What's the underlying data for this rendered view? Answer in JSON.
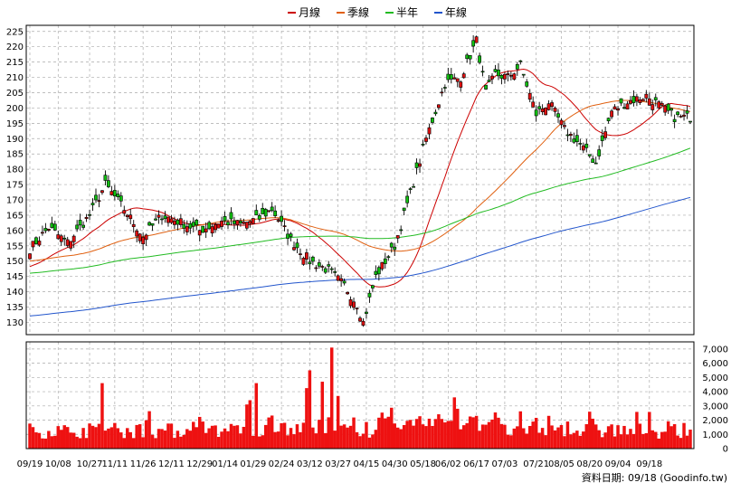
{
  "chart_data": {
    "type": "candlestick",
    "legend": [
      {
        "name": "月線",
        "color": "#cc0000"
      },
      {
        "name": "季線",
        "color": "#e06010"
      },
      {
        "name": "半年",
        "color": "#22bb22"
      },
      {
        "name": "年線",
        "color": "#2255cc"
      }
    ],
    "price_axis": {
      "min": 126,
      "max": 227,
      "ticks": [
        130,
        135,
        140,
        145,
        150,
        155,
        160,
        165,
        170,
        175,
        180,
        185,
        190,
        195,
        200,
        205,
        210,
        215,
        220,
        225
      ]
    },
    "volume_axis": {
      "min": 0,
      "max": 7500,
      "ticks": [
        0,
        1000,
        2000,
        3000,
        4000,
        5000,
        6000,
        7000
      ],
      "tick_labels": [
        "0",
        "1,000",
        "2,000",
        "3,000",
        "4,000",
        "5,000",
        "6,000",
        "7,000"
      ]
    },
    "x_tick_labels": [
      "09/19",
      "10/08",
      "10/27",
      "11/11",
      "11/26",
      "12/11",
      "12/29",
      "01/14",
      "01/29",
      "02/24",
      "03/12",
      "03/27",
      "04/15",
      "04/30",
      "05/18",
      "06/02",
      "06/17",
      "07/03",
      "07/21",
      "08/05",
      "08/20",
      "09/04",
      "09/18"
    ],
    "anchors": [
      {
        "d": 0,
        "c": 154
      },
      {
        "d": 6,
        "c": 161
      },
      {
        "d": 12,
        "c": 156
      },
      {
        "d": 19,
        "c": 165
      },
      {
        "d": 24,
        "c": 175
      },
      {
        "d": 30,
        "c": 167
      },
      {
        "d": 36,
        "c": 158
      },
      {
        "d": 42,
        "c": 165
      },
      {
        "d": 47,
        "c": 163
      },
      {
        "d": 54,
        "c": 160
      },
      {
        "d": 61,
        "c": 163
      },
      {
        "d": 67,
        "c": 162
      },
      {
        "d": 73,
        "c": 164
      },
      {
        "d": 77,
        "c": 167
      },
      {
        "d": 83,
        "c": 157
      },
      {
        "d": 89,
        "c": 150
      },
      {
        "d": 95,
        "c": 147
      },
      {
        "d": 100,
        "c": 142
      },
      {
        "d": 104,
        "c": 136
      },
      {
        "d": 106,
        "c": 130
      },
      {
        "d": 110,
        "c": 145
      },
      {
        "d": 116,
        "c": 155
      },
      {
        "d": 121,
        "c": 172
      },
      {
        "d": 126,
        "c": 190
      },
      {
        "d": 132,
        "c": 208
      },
      {
        "d": 137,
        "c": 210
      },
      {
        "d": 142,
        "c": 222
      },
      {
        "d": 145,
        "c": 205
      },
      {
        "d": 148,
        "c": 211
      },
      {
        "d": 152,
        "c": 210
      },
      {
        "d": 156,
        "c": 214
      },
      {
        "d": 161,
        "c": 198
      },
      {
        "d": 165,
        "c": 202
      },
      {
        "d": 170,
        "c": 193
      },
      {
        "d": 175,
        "c": 188
      },
      {
        "d": 180,
        "c": 182
      },
      {
        "d": 185,
        "c": 199
      },
      {
        "d": 190,
        "c": 202
      },
      {
        "d": 196,
        "c": 204
      },
      {
        "d": 200,
        "c": 201
      },
      {
        "d": 205,
        "c": 197
      },
      {
        "d": 210,
        "c": 197
      }
    ],
    "footer_text": "資料日期: 09/18 (Goodinfo.tw)"
  }
}
